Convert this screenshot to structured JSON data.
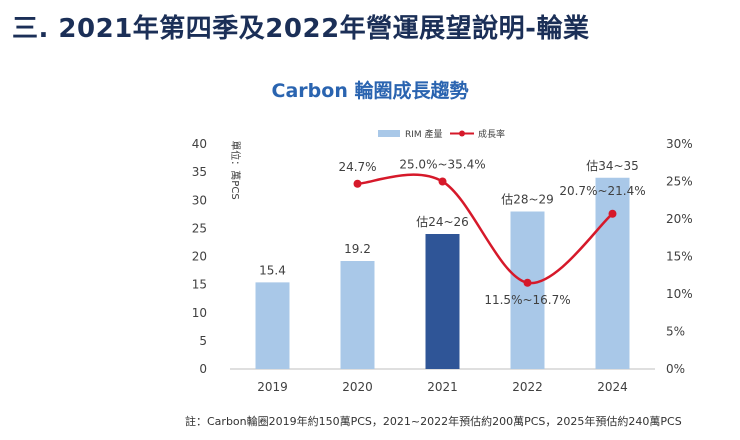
{
  "slide": {
    "title": "三. 2021年第四季及2022年營運展望說明-輪業",
    "footnote": "註：Carbon輪圈2019年約150萬PCS，2021~2022年預估約200萬PCS，2025年預估約240萬PCS"
  },
  "colors": {
    "bar": "#a9c8e8",
    "bar_highlight": "#2f5597",
    "line": "#d6192a",
    "title": "#1b2f57",
    "chart_title": "#2a64b0"
  },
  "chart_data": {
    "type": "bar",
    "title": "Carbon 輪圈成長趨勢",
    "ylabel": "單位：萬PCS",
    "categories": [
      "2019",
      "2020",
      "2021",
      "2022",
      "2024"
    ],
    "ylim": [
      0,
      40
    ],
    "yticks": [
      "0",
      "5",
      "10",
      "15",
      "20",
      "25",
      "30",
      "35",
      "40"
    ],
    "y2lim": [
      0,
      30
    ],
    "y2ticks": [
      "0%",
      "5%",
      "10%",
      "15%",
      "20%",
      "25%",
      "30%"
    ],
    "legend_position": "top",
    "grid": false,
    "series": [
      {
        "name": "RIM 產量",
        "type": "bar",
        "values": [
          15.4,
          19.2,
          24,
          28,
          34
        ],
        "labels": [
          "15.4",
          "19.2",
          "估24~26",
          "估28~29",
          "估34~35"
        ],
        "highlight_index": 2
      },
      {
        "name": "成長率",
        "type": "line",
        "axis": "right",
        "values": [
          null,
          24.7,
          25.0,
          11.5,
          20.7
        ],
        "labels": [
          "",
          "24.7%",
          "25.0%~35.4%",
          "11.5%~16.7%",
          "20.7%~21.4%"
        ]
      }
    ]
  }
}
